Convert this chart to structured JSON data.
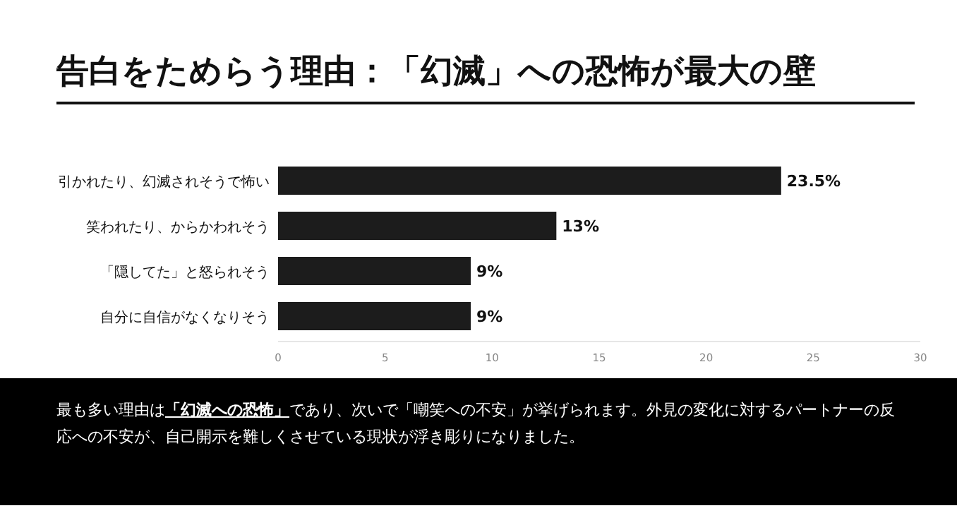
{
  "chart_data": {
    "type": "bar",
    "orientation": "horizontal",
    "title": "告白をためらう理由：「幻滅」への恐怖が最大の壁",
    "categories": [
      "引かれたり、幻滅されそうで怖い",
      "笑われたり、からかわれそう",
      "「隠してた」と怒られそう",
      "自分に自信がなくなりそう"
    ],
    "values": [
      23.5,
      13,
      9,
      9
    ],
    "value_labels": [
      "23.5%",
      "13%",
      "9%",
      "9%"
    ],
    "color": "#1c1c1c",
    "xlim": [
      0,
      30
    ],
    "xticks": [
      0,
      5,
      10,
      15,
      20,
      25,
      30
    ],
    "grid": false,
    "annotations": [
      "最も多い理由は**「幻滅への恐怖」**であり、次いで「嘲笑への不安」が挙げられます。外見の変化に対するパートナーの反応への不安が、自己開示を難しくさせている現状が浮き彫りになりました。"
    ]
  }
}
